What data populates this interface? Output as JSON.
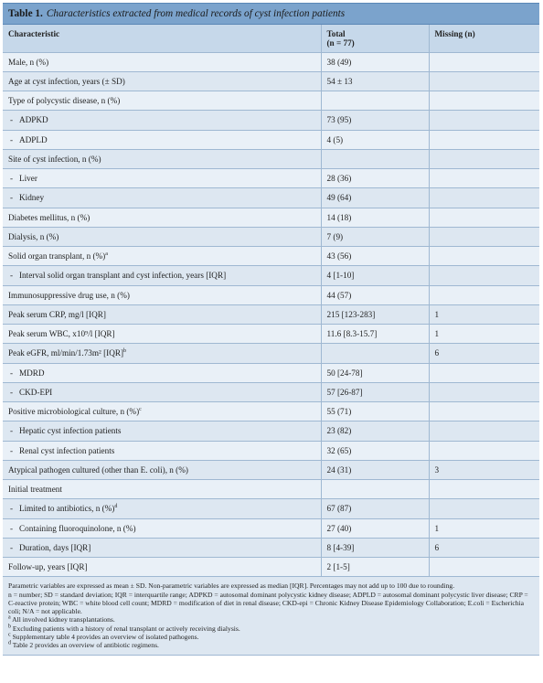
{
  "table": {
    "label": "Table 1.",
    "caption": "Characteristics extracted from medical records of cyst infection patients",
    "headers": {
      "characteristic": "Characteristic",
      "total": "Total",
      "total_n": "(n = 77)",
      "missing": "Missing (n)"
    },
    "rows": [
      {
        "label": "Male, n (%)",
        "total": "38 (49)",
        "missing": "",
        "sub": false,
        "mark": ""
      },
      {
        "label": "Age at cyst infection, years (± SD)",
        "total": "54 ± 13",
        "missing": "",
        "sub": false,
        "mark": ""
      },
      {
        "label": "Type of polycystic disease, n (%)",
        "total": "",
        "missing": "",
        "sub": false,
        "mark": ""
      },
      {
        "label": "ADPKD",
        "total": "73 (95)",
        "missing": "",
        "sub": true,
        "mark": ""
      },
      {
        "label": "ADPLD",
        "total": "4 (5)",
        "missing": "",
        "sub": true,
        "mark": ""
      },
      {
        "label": "Site of cyst infection, n (%)",
        "total": "",
        "missing": "",
        "sub": false,
        "mark": ""
      },
      {
        "label": "Liver",
        "total": "28 (36)",
        "missing": "",
        "sub": true,
        "mark": ""
      },
      {
        "label": "Kidney",
        "total": "49 (64)",
        "missing": "",
        "sub": true,
        "mark": ""
      },
      {
        "label": "Diabetes mellitus, n (%)",
        "total": "14 (18)",
        "missing": "",
        "sub": false,
        "mark": ""
      },
      {
        "label": "Dialysis, n (%)",
        "total": "7 (9)",
        "missing": "",
        "sub": false,
        "mark": ""
      },
      {
        "label": "Solid organ transplant, n (%)",
        "total": "43 (56)",
        "missing": "",
        "sub": false,
        "mark": "a"
      },
      {
        "label": "Interval solid organ transplant and cyst infection, years [IQR]",
        "total": "4 [1-10]",
        "missing": "",
        "sub": true,
        "mark": ""
      },
      {
        "label": "Immunosuppressive drug use, n (%)",
        "total": "44 (57)",
        "missing": "",
        "sub": false,
        "mark": ""
      },
      {
        "label": "Peak serum CRP, mg/l [IQR]",
        "total": "215 [123-283]",
        "missing": "1",
        "sub": false,
        "mark": ""
      },
      {
        "label": "Peak serum WBC, x10⁹/l [IQR]",
        "total": "11.6 [8.3-15.7]",
        "missing": "1",
        "sub": false,
        "mark": ""
      },
      {
        "label": "Peak eGFR, ml/min/1.73m² [IQR]",
        "total": "",
        "missing": "6",
        "sub": false,
        "mark": "b"
      },
      {
        "label": "MDRD",
        "total": "50 [24-78]",
        "missing": "",
        "sub": true,
        "mark": ""
      },
      {
        "label": "CKD-EPI",
        "total": "57 [26-87]",
        "missing": "",
        "sub": true,
        "mark": ""
      },
      {
        "label": "Positive microbiological culture, n (%)",
        "total": "55 (71)",
        "missing": "",
        "sub": false,
        "mark": "c"
      },
      {
        "label": "Hepatic cyst infection patients",
        "total": "23 (82)",
        "missing": "",
        "sub": true,
        "mark": ""
      },
      {
        "label": "Renal cyst infection patients",
        "total": "32 (65)",
        "missing": "",
        "sub": true,
        "mark": ""
      },
      {
        "label": "Atypical pathogen cultured (other than E. coli), n (%)",
        "total": "24 (31)",
        "missing": "3",
        "sub": false,
        "mark": ""
      },
      {
        "label": "Initial treatment",
        "total": "",
        "missing": "",
        "sub": false,
        "mark": ""
      },
      {
        "label": "Limited to antibiotics, n (%)",
        "total": "67 (87)",
        "missing": "",
        "sub": true,
        "mark": "d"
      },
      {
        "label": "Containing fluoroquinolone, n (%)",
        "total": "27 (40)",
        "missing": "1",
        "sub": true,
        "mark": ""
      },
      {
        "label": "Duration, days [IQR]",
        "total": "8 [4-39]",
        "missing": "6",
        "sub": true,
        "mark": ""
      },
      {
        "label": "Follow-up, years [IQR]",
        "total": "2 [1-5]",
        "missing": "",
        "sub": false,
        "mark": ""
      }
    ],
    "footnotes": {
      "general": "Parametric variables are expressed as mean ± SD. Non-parametric variables are expressed as median [IQR]. Percentages may not add up to 100 due to rounding.",
      "abbreviations": "n = number; SD = standard deviation; IQR = interquartile range; ADPKD = autosomal dominant polycystic kidney disease; ADPLD = autosomal dominant polycystic liver disease; CRP = C-reactive protein; WBC = white blood cell count; MDRD = modification of diet in renal disease; CKD-epi = Chronic Kidney Disease Epidemiology Collaboration; E.coli = Escherichia coli; N/A = not applicable.",
      "a": "All involved kidney transplantations.",
      "b": "Excluding patients with a history of renal transplant or actively receiving dialysis.",
      "c": "Supplementary table 4 provides an overview of isolated pathogens.",
      "d": "Table 2 provides an overview of antibiotic regimens."
    },
    "footnote_marks": {
      "a": "a",
      "b": "b",
      "c": "c",
      "d": "d"
    }
  }
}
